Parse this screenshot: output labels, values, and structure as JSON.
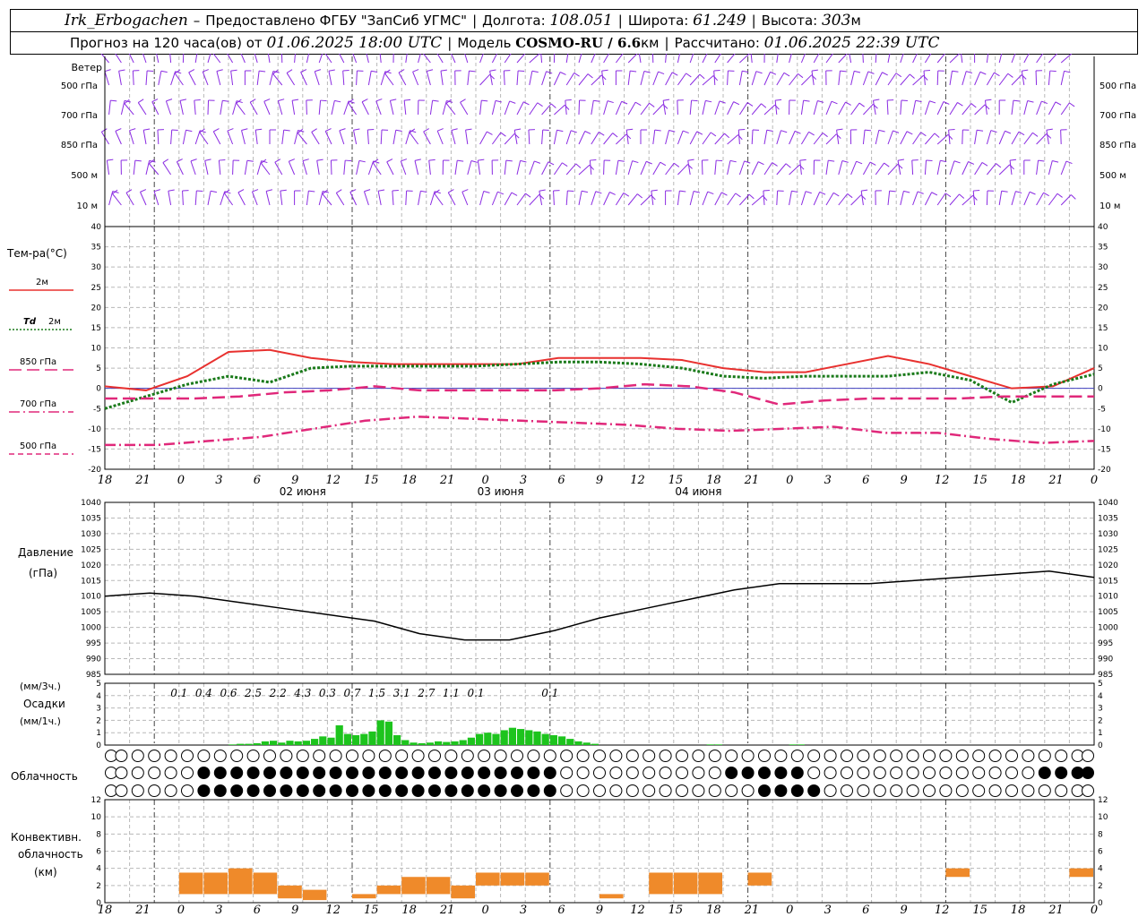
{
  "header": {
    "station": "Irk_Erbogachen",
    "dash": "–",
    "provider": "Предоставлено ФГБУ \"ЗапСиб УГМС\"",
    "lon_label": "Долгота:",
    "lon": "108.051",
    "lat_label": "Широта:",
    "lat": "61.249",
    "alt_label": "Высота:",
    "alt": "303",
    "alt_unit": "м",
    "forecast_label": "Прогноз на 120 часа(ов) от",
    "forecast_start": "01.06.2025 18:00 UTC",
    "model_label": "Модель",
    "model": "COSMO-RU / 6.6",
    "model_unit": "км",
    "calc_label": "Рассчитано:",
    "calc_time": "01.06.2025 22:39 UTC"
  },
  "chart_data": [
    {
      "type": "wind-barbs",
      "title": "Ветер",
      "levels": [
        "500 гПа",
        "700 гПа",
        "850 гПа",
        "500 м",
        "10  м"
      ],
      "colors": {
        "barb": "#8a2be2"
      }
    },
    {
      "type": "line",
      "title": "Тем-ра(°C)",
      "ylim": [
        -20,
        40
      ],
      "yticks": [
        -20,
        -15,
        -10,
        -5,
        0,
        5,
        10,
        15,
        20,
        25,
        30,
        35,
        40
      ],
      "x_hours": [
        0,
        3,
        6,
        9,
        12,
        15,
        18,
        21,
        24,
        27,
        30,
        33,
        36,
        39,
        42,
        45,
        48,
        51,
        54,
        57,
        60,
        63,
        66,
        69,
        72,
        75,
        78
      ],
      "series": [
        {
          "name": "2м",
          "color": "#e8312f",
          "style": "solid",
          "values": [
            0.5,
            -0.5,
            3,
            9,
            9.5,
            7.5,
            6.5,
            6,
            6,
            6,
            6,
            7.5,
            7.5,
            7.5,
            7,
            5,
            4,
            4,
            6,
            8,
            6,
            3,
            0,
            0.5,
            5
          ]
        },
        {
          "name": "Td 2м",
          "label_prefix": "Td",
          "label_suffix": "2м",
          "color": "#1a7a1a",
          "style": "dotted",
          "values": [
            -5,
            -2,
            1,
            3,
            1.5,
            5,
            5.5,
            5.5,
            5.5,
            5.5,
            6,
            6.5,
            6.5,
            6,
            5,
            3,
            2.5,
            3,
            3,
            3,
            4,
            2,
            -3.5,
            1,
            3.5
          ]
        },
        {
          "name": "850 гПа",
          "color": "#e0287a",
          "style": "longdash",
          "values": [
            -2.5,
            -2.5,
            -2.5,
            -2,
            -1,
            -0.5,
            0.5,
            -0.5,
            -0.5,
            -0.5,
            -0.5,
            0,
            1,
            0.5,
            -1,
            -4,
            -3,
            -2.5,
            -2.5,
            -2.5,
            -2,
            -2,
            -2
          ]
        },
        {
          "name": "700 гПа",
          "color": "#e0287a",
          "style": "dashdot",
          "values": [
            -14,
            -14,
            -13,
            -12,
            -10,
            -8,
            -7,
            -7.5,
            -8,
            -8.5,
            -9,
            -10,
            -10.5,
            -10,
            -9.5,
            -11,
            -11,
            -12.5,
            -13.5,
            -13
          ]
        },
        {
          "name": "500 гПа",
          "color": "#e0287a",
          "style": "dashed",
          "values": []
        }
      ],
      "x_tick_labels": [
        "18",
        "21",
        "0",
        "3",
        "6",
        "9",
        "12",
        "15",
        "18",
        "21",
        "0",
        "3",
        "6",
        "9",
        "12",
        "15",
        "18",
        "21",
        "0",
        "3",
        "6",
        "9",
        "12",
        "15",
        "18",
        "21",
        "0"
      ],
      "date_labels": [
        "02 июня",
        "03 июня",
        "04 июня"
      ]
    },
    {
      "type": "line",
      "title": "Давление",
      "ylabel": "(гПа)",
      "ylim": [
        985,
        1040
      ],
      "yticks": [
        985,
        990,
        995,
        1000,
        1005,
        1010,
        1015,
        1020,
        1025,
        1030,
        1035,
        1040
      ],
      "series": [
        {
          "name": "Давление",
          "color": "#000000",
          "values": [
            1010,
            1011,
            1010,
            1008,
            1006,
            1004,
            1002,
            998,
            996,
            996,
            999,
            1003,
            1006,
            1009,
            1012,
            1014,
            1014,
            1014,
            1015,
            1016,
            1017,
            1018,
            1016
          ]
        }
      ]
    },
    {
      "type": "bar",
      "title": "Осадки",
      "ylabel_top": "(мм/3ч.)",
      "ylabel_bottom": "(мм/1ч.)",
      "ylim": [
        0,
        5
      ],
      "yticks": [
        0,
        1,
        2,
        3,
        4,
        5
      ],
      "three_hour_totals": [
        "0.1",
        "0.4",
        "0.6",
        "2.5",
        "2.2",
        "4.3",
        "0.3",
        "0.7",
        "1.5",
        "3.1",
        "2.7",
        "1.1",
        "0.1",
        "0.1"
      ],
      "hourly_values": [
        0,
        0,
        0,
        0,
        0,
        0,
        0,
        0,
        0,
        0,
        0,
        0,
        0,
        0,
        0,
        0.05,
        0.1,
        0.1,
        0.15,
        0.3,
        0.35,
        0.2,
        0.35,
        0.3,
        0.35,
        0.5,
        0.7,
        0.6,
        1.6,
        0.9,
        0.8,
        0.9,
        1.1,
        2.0,
        1.9,
        0.8,
        0.4,
        0.2,
        0.15,
        0.2,
        0.3,
        0.25,
        0.3,
        0.4,
        0.6,
        0.9,
        1.0,
        0.9,
        1.2,
        1.4,
        1.3,
        1.2,
        1.1,
        0.9,
        0.8,
        0.7,
        0.5,
        0.3,
        0.2,
        0.1,
        0,
        0,
        0,
        0,
        0,
        0,
        0,
        0,
        0,
        0,
        0,
        0,
        0,
        0.05,
        0.05,
        0,
        0,
        0,
        0,
        0,
        0,
        0,
        0,
        0.05,
        0.05
      ],
      "colors": {
        "bar": "#1dc41d"
      }
    },
    {
      "type": "table",
      "title": "Облачность",
      "legend": "clear/overcast symbols"
    },
    {
      "type": "bar",
      "title": "Конвективн. облачность (км)",
      "ylim": [
        0,
        12
      ],
      "yticks": [
        0,
        2,
        4,
        6,
        8,
        10,
        12
      ],
      "colors": {
        "bar": "#ef8a2a"
      }
    }
  ]
}
